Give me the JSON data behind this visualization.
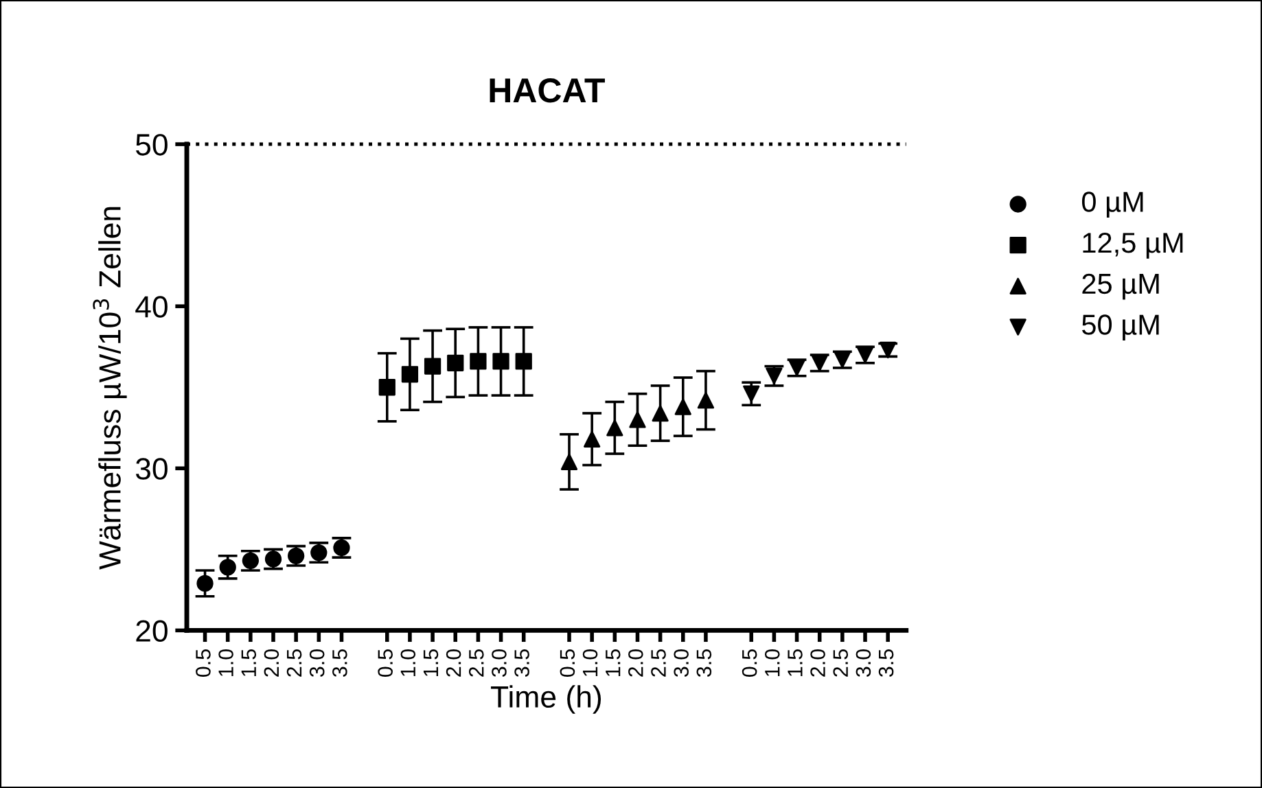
{
  "chart_data": {
    "type": "scatter",
    "title": "HACAT",
    "xlabel": "Time (h)",
    "ylabel": "Wärmefluss µW/10$^{3}$ Zellen",
    "categories": [
      "0.5",
      "1.0",
      "1.5",
      "2.0",
      "2.5",
      "3.0",
      "3.5",
      null,
      "0.5",
      "1.0",
      "1.5",
      "2.0",
      "2.5",
      "3.0",
      "3.5",
      null,
      "0.5",
      "1.0",
      "1.5",
      "2.0",
      "2.5",
      "3.0",
      "3.5",
      null,
      "0.5",
      "1.0",
      "1.5",
      "2.0",
      "2.5",
      "3.0",
      "3.5"
    ],
    "ylim": [
      20,
      50
    ],
    "yticks": [
      20,
      30,
      40,
      50
    ],
    "grid": false,
    "legend": "right",
    "ref_lines": [
      {
        "axis": "y",
        "value": 50,
        "color": "#000000",
        "line_style": "dotted"
      }
    ],
    "series": [
      {
        "name": "0 µM",
        "color": "#000000",
        "marker": "circle",
        "values": [
          22.9,
          23.9,
          24.3,
          24.4,
          24.6,
          24.8,
          25.1,
          null,
          null,
          null,
          null,
          null,
          null,
          null,
          null,
          null,
          null,
          null,
          null,
          null,
          null,
          null,
          null,
          null,
          null,
          null,
          null,
          null,
          null,
          null,
          null
        ],
        "errors": [
          0.8,
          0.7,
          0.6,
          0.6,
          0.6,
          0.6,
          0.6,
          null,
          null,
          null,
          null,
          null,
          null,
          null,
          null,
          null,
          null,
          null,
          null,
          null,
          null,
          null,
          null,
          null,
          null,
          null,
          null,
          null,
          null,
          null,
          null
        ]
      },
      {
        "name": "12,5 µM",
        "color": "#000000",
        "marker": "square",
        "values": [
          null,
          null,
          null,
          null,
          null,
          null,
          null,
          null,
          35.0,
          35.8,
          36.3,
          36.5,
          36.6,
          36.6,
          36.6,
          null,
          null,
          null,
          null,
          null,
          null,
          null,
          null,
          null,
          null,
          null,
          null,
          null,
          null,
          null,
          null
        ],
        "errors": [
          null,
          null,
          null,
          null,
          null,
          null,
          null,
          null,
          2.1,
          2.2,
          2.2,
          2.1,
          2.1,
          2.1,
          2.1,
          null,
          null,
          null,
          null,
          null,
          null,
          null,
          null,
          null,
          null,
          null,
          null,
          null,
          null,
          null,
          null
        ]
      },
      {
        "name": "25 µM",
        "color": "#000000",
        "marker": "triangle",
        "values": [
          null,
          null,
          null,
          null,
          null,
          null,
          null,
          null,
          null,
          null,
          null,
          null,
          null,
          null,
          null,
          null,
          30.4,
          31.8,
          32.5,
          33.0,
          33.4,
          33.8,
          34.2,
          null,
          null,
          null,
          null,
          null,
          null,
          null,
          null
        ],
        "errors": [
          null,
          null,
          null,
          null,
          null,
          null,
          null,
          null,
          null,
          null,
          null,
          null,
          null,
          null,
          null,
          null,
          1.7,
          1.6,
          1.6,
          1.6,
          1.7,
          1.8,
          1.8,
          null,
          null,
          null,
          null,
          null,
          null,
          null,
          null
        ]
      },
      {
        "name": "50 µM",
        "color": "#000000",
        "marker": "triangle_down",
        "values": [
          null,
          null,
          null,
          null,
          null,
          null,
          null,
          null,
          null,
          null,
          null,
          null,
          null,
          null,
          null,
          null,
          null,
          null,
          null,
          null,
          null,
          null,
          null,
          null,
          34.6,
          35.7,
          36.2,
          36.5,
          36.7,
          37.0,
          37.3
        ],
        "errors": [
          null,
          null,
          null,
          null,
          null,
          null,
          null,
          null,
          null,
          null,
          null,
          null,
          null,
          null,
          null,
          null,
          null,
          null,
          null,
          null,
          null,
          null,
          null,
          null,
          0.7,
          0.6,
          0.5,
          0.5,
          0.5,
          0.5,
          0.4
        ]
      }
    ]
  }
}
